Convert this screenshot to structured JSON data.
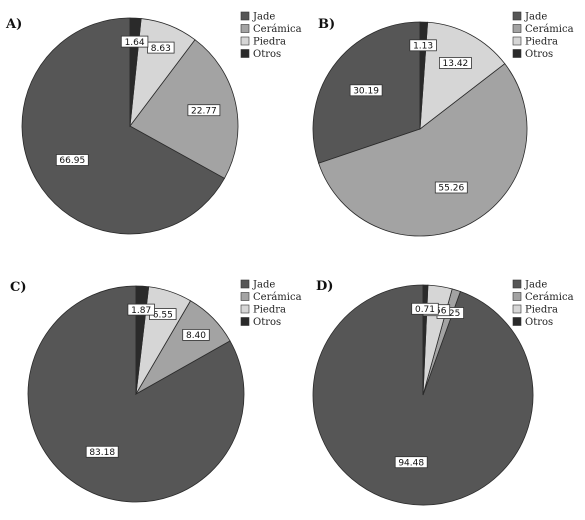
{
  "colors": {
    "Jade": "#565656",
    "Cerámica": "#a3a3a3",
    "Piedra": "#d6d6d6",
    "Otros": "#2a2a2a"
  },
  "chart_data": [
    {
      "type": "pie",
      "panel": "A)",
      "categories": [
        "Jade",
        "Cerámica",
        "Piedra",
        "Otros"
      ],
      "values": [
        66.95,
        22.77,
        8.63,
        1.64
      ],
      "data_labels": [
        "66.95",
        "22.77",
        "8.63",
        "1.64"
      ],
      "legend": [
        "Jade",
        "Cerámica",
        "Piedra",
        "Otros"
      ],
      "legend_position": "top-right"
    },
    {
      "type": "pie",
      "panel": "B)",
      "categories": [
        "Jade",
        "Cerámica",
        "Piedra",
        "Otros"
      ],
      "values": [
        30.19,
        55.26,
        13.42,
        1.13
      ],
      "data_labels": [
        "30.19",
        "55.26",
        "13.42",
        "1.13"
      ],
      "legend": [
        "Jade",
        "Cerámica",
        "Piedra",
        "Otros"
      ],
      "legend_position": "top-right"
    },
    {
      "type": "pie",
      "panel": "C)",
      "categories": [
        "Jade",
        "Cerámica",
        "Piedra",
        "Otros"
      ],
      "values": [
        83.18,
        8.4,
        6.55,
        1.87
      ],
      "data_labels": [
        "83.18",
        "8.40",
        "6.55",
        "1.87"
      ],
      "legend": [
        "Jade",
        "Cerámica",
        "Piedra",
        "Otros"
      ],
      "legend_position": "top-right"
    },
    {
      "type": "pie",
      "panel": "D)",
      "categories": [
        "Jade",
        "Cerámica",
        "Piedra",
        "Otros"
      ],
      "values": [
        94.48,
        1.25,
        3.56,
        0.71
      ],
      "data_labels": [
        "94.48",
        "1.25",
        "3.56",
        "0.71"
      ],
      "legend": [
        "Jade",
        "Cerámica",
        "Piedra",
        "Otros"
      ],
      "legend_position": "top-right"
    }
  ]
}
